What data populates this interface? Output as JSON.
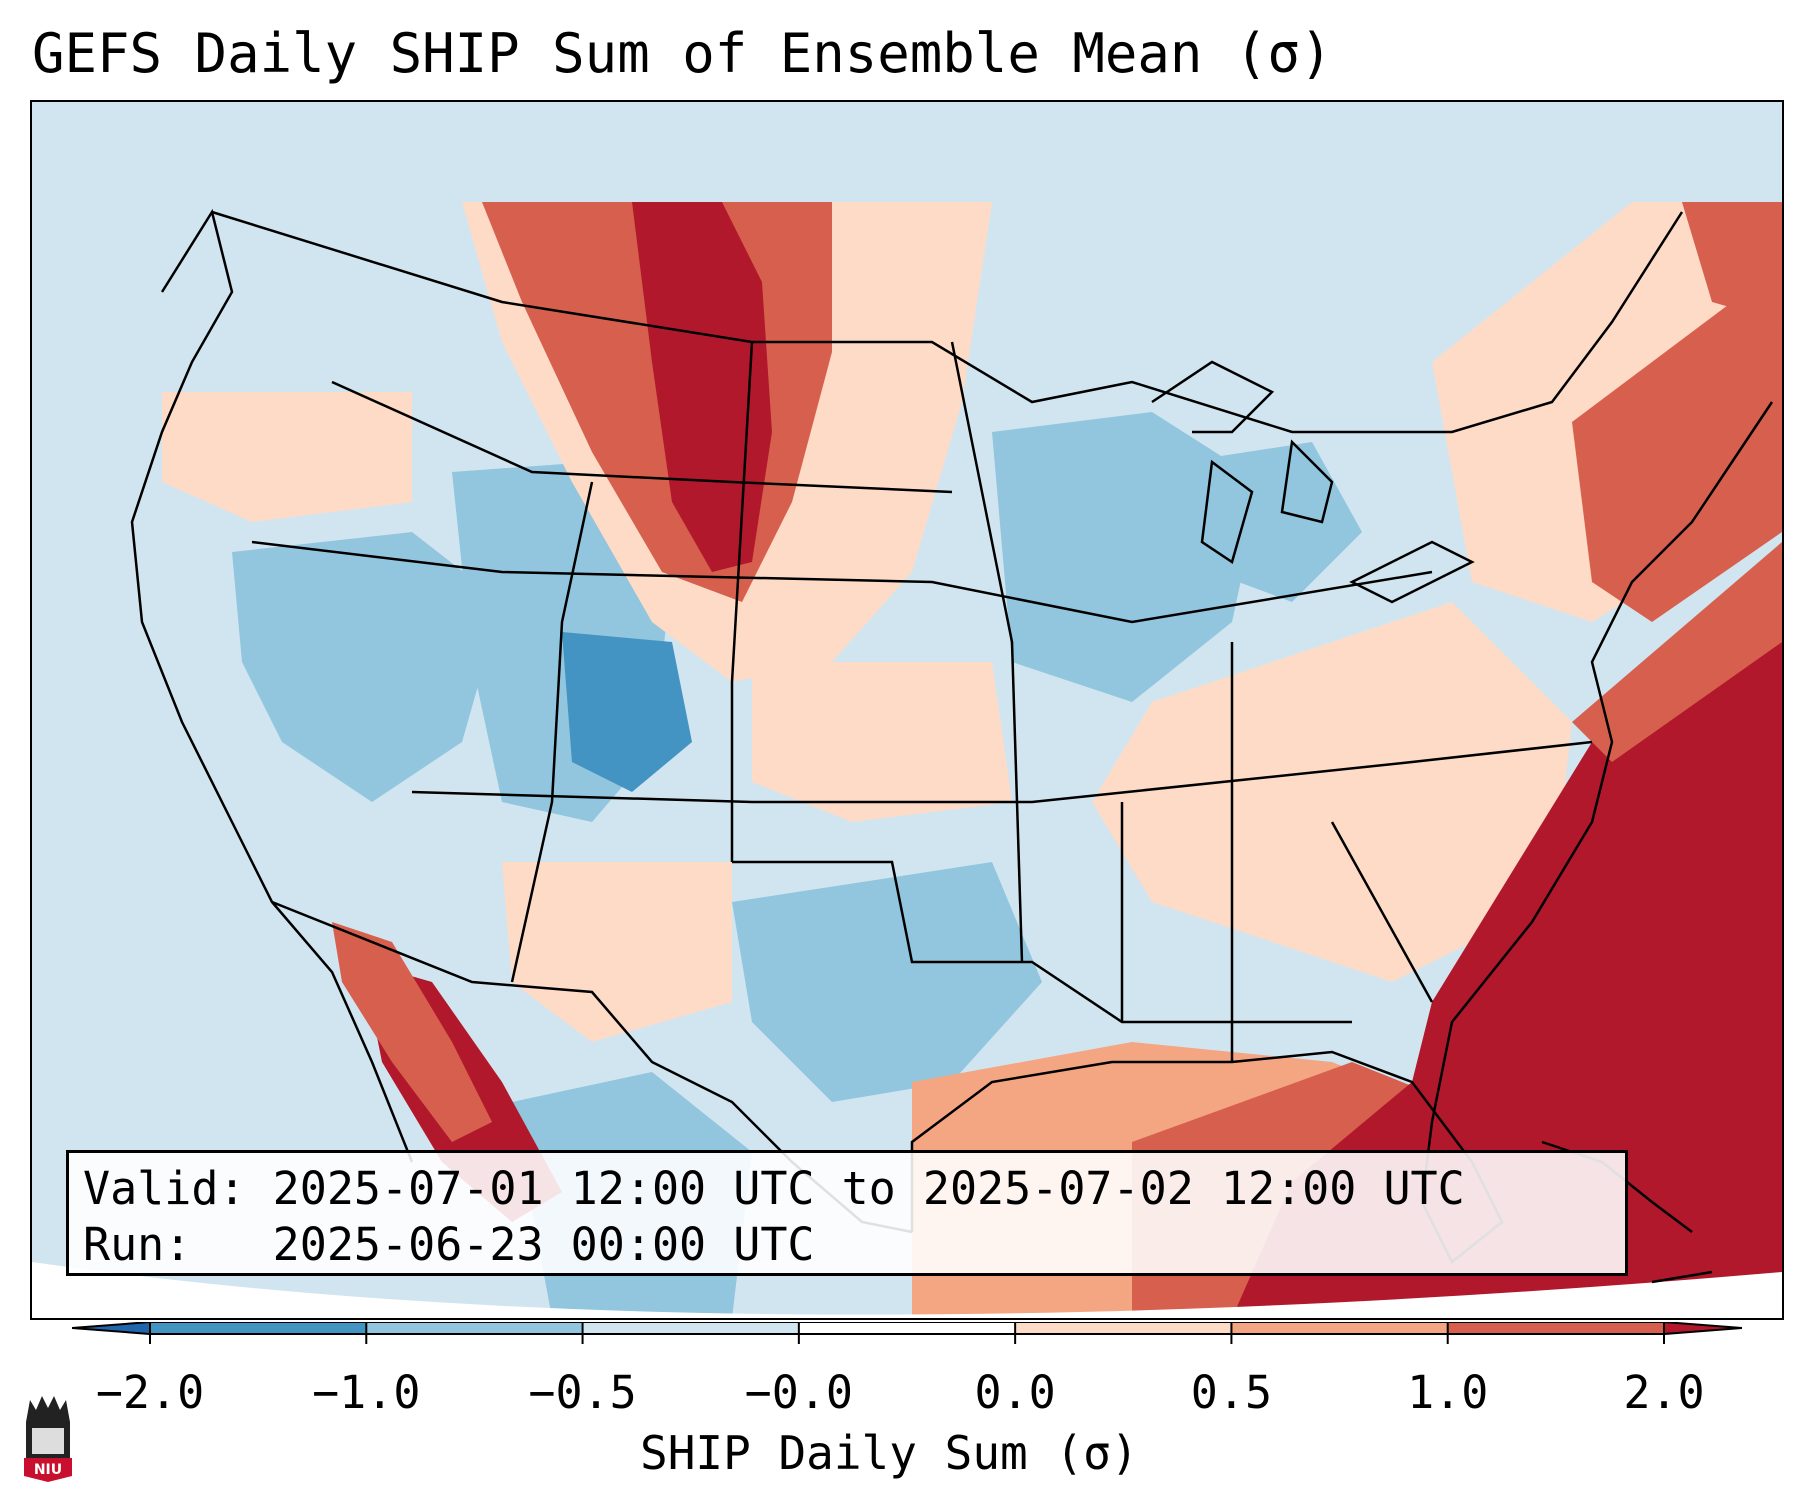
{
  "title": "GEFS Daily SHIP Sum of Ensemble Mean (σ)",
  "info": {
    "valid_label": "Valid:",
    "valid_value": "2025-07-01 12:00 UTC to 2025-07-02 12:00 UTC",
    "run_label": "Run:",
    "run_value": "2025-06-23 00:00 UTC"
  },
  "colorbar": {
    "title": "SHIP Daily Sum (σ)",
    "ticks": [
      "−2.0",
      "−1.0",
      "−0.5",
      "−0.0",
      "0.0",
      "0.5",
      "1.0",
      "2.0"
    ],
    "colors": [
      "#2166ac",
      "#4393c3",
      "#92c5de",
      "#d1e5f0",
      "#ffffff",
      "#fddbc7",
      "#f4a582",
      "#d6604d",
      "#b2182b"
    ]
  },
  "logo": {
    "text": "NIU",
    "color": "#c8102e"
  },
  "map": {
    "ocean_color": "#d1e5f0",
    "land_outline": "#000000",
    "anomaly_regions": [
      {
        "name": "northern-plains",
        "category": "strong-positive"
      },
      {
        "name": "southeast-atlantic",
        "category": "strong-positive"
      },
      {
        "name": "gulf-of-california",
        "category": "strong-positive"
      },
      {
        "name": "northeast-coast",
        "category": "positive"
      },
      {
        "name": "central-rockies",
        "category": "negative"
      }
    ]
  }
}
